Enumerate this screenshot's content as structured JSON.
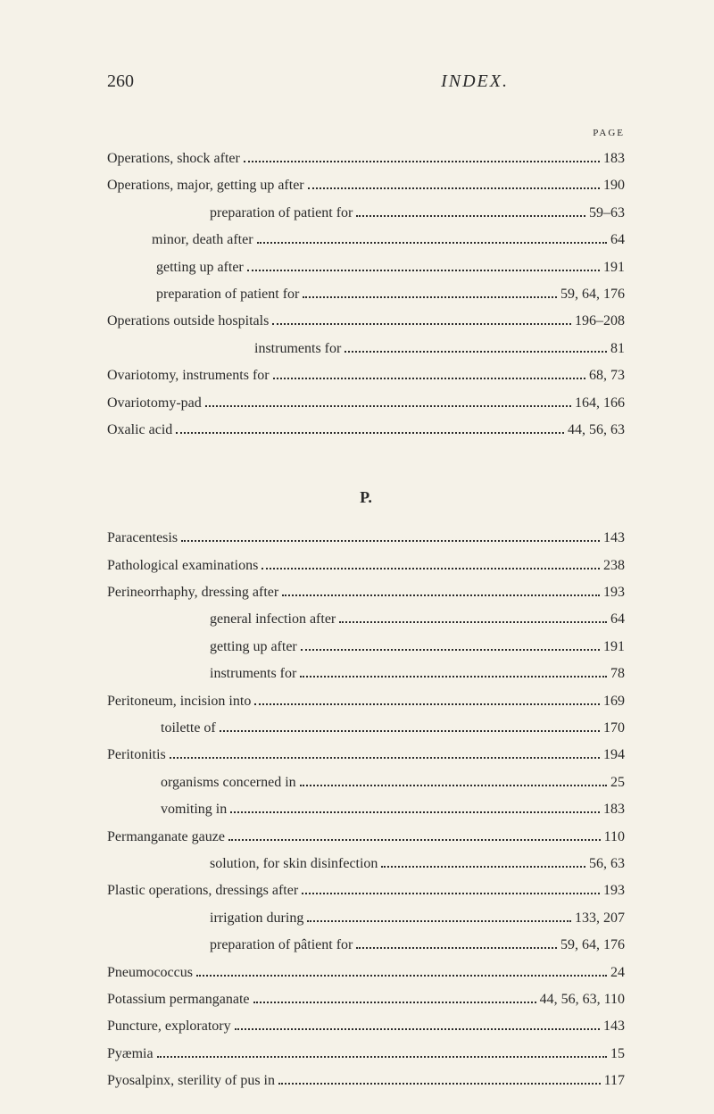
{
  "header": {
    "page_number": "260",
    "title": "INDEX.",
    "page_label": "PAGE"
  },
  "section1": {
    "entries": [
      {
        "text": "Operations, shock after",
        "page": "183",
        "indent": 0
      },
      {
        "text": "Operations, major, getting up after",
        "page": "190",
        "indent": 0
      },
      {
        "text": "preparation of patient for",
        "page": "59–63",
        "indent": 1
      },
      {
        "text": "minor, death after",
        "page": "64",
        "indent": 2
      },
      {
        "text": "getting up after",
        "page": "191",
        "indent": 4
      },
      {
        "text": "preparation of patient for",
        "page": "59, 64, 176",
        "indent": 4
      },
      {
        "text": "Operations outside hospitals",
        "page": "196–208",
        "indent": 0
      },
      {
        "text": "instruments for",
        "page": "81",
        "indent": 3
      },
      {
        "text": "Ovariotomy, instruments for",
        "page": "68, 73",
        "indent": 0
      },
      {
        "text": "Ovariotomy-pad",
        "page": "164, 166",
        "indent": 0
      },
      {
        "text": "Oxalic acid",
        "page": "44, 56, 63",
        "indent": 0
      }
    ]
  },
  "section2": {
    "letter": "P.",
    "entries": [
      {
        "text": "Paracentesis",
        "page": "143",
        "indent": 0
      },
      {
        "text": "Pathological examinations",
        "page": "238",
        "indent": 0
      },
      {
        "text": "Perineorrhaphy, dressing after",
        "page": "193",
        "indent": 0
      },
      {
        "text": "general infection after",
        "page": "64",
        "indent": 5
      },
      {
        "text": "getting up after",
        "page": "191",
        "indent": 5
      },
      {
        "text": "instruments for",
        "page": "78",
        "indent": 5
      },
      {
        "text": "Peritoneum, incision into",
        "page": "169",
        "indent": 0
      },
      {
        "text": "toilette of",
        "page": "170",
        "indent": 6
      },
      {
        "text": "Peritonitis",
        "page": "194",
        "indent": 0
      },
      {
        "text": "organisms concerned in",
        "page": "25",
        "indent": 6
      },
      {
        "text": "vomiting in",
        "page": "183",
        "indent": 6
      },
      {
        "text": "Permanganate gauze",
        "page": "110",
        "indent": 0
      },
      {
        "text": "solution, for skin disinfection",
        "page": "56, 63",
        "indent": 5
      },
      {
        "text": "Plastic operations, dressings after",
        "page": "193",
        "indent": 0
      },
      {
        "text": "irrigation during",
        "page": "133, 207",
        "indent": 5
      },
      {
        "text": "preparation of pâtient for",
        "page": "59, 64, 176",
        "indent": 5
      },
      {
        "text": "Pneumococcus",
        "page": "24",
        "indent": 0
      },
      {
        "text": "Potassium permanganate",
        "page": "44, 56, 63, 110",
        "indent": 0
      },
      {
        "text": "Puncture, exploratory",
        "page": "143",
        "indent": 0
      },
      {
        "text": "Pyæmia",
        "page": "15",
        "indent": 0
      },
      {
        "text": "Pyosalpinx, sterility of pus in",
        "page": "117",
        "indent": 0
      }
    ]
  },
  "colors": {
    "background": "#f5f2e8",
    "text": "#2a2a2a"
  },
  "typography": {
    "body_fontsize": 16,
    "header_fontsize": 20,
    "page_label_fontsize": 11,
    "line_height": 1.9
  }
}
